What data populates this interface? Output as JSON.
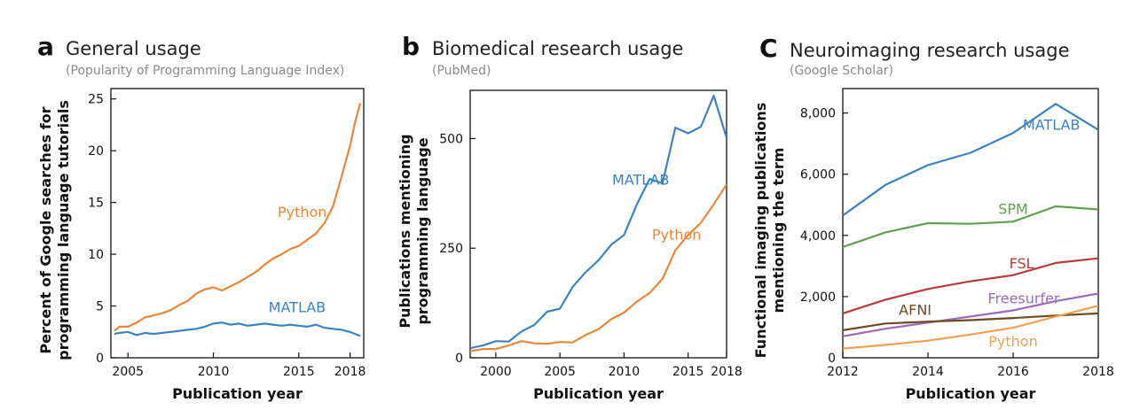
{
  "chart_data": [
    {
      "type": "line",
      "panel_label": "a",
      "title": "General usage",
      "subtitle": "(Popularity of Programming Language Index)",
      "xlabel": "Publication year",
      "ylabel": [
        "Percent of Google searches for",
        "programming language tutorials"
      ],
      "xlim": [
        2004,
        2018.8
      ],
      "ylim": [
        0,
        26
      ],
      "xticks": [
        2005,
        2010,
        2015,
        2018
      ],
      "yticks": [
        0,
        5,
        10,
        15,
        20,
        25
      ],
      "grid": false,
      "series": [
        {
          "name": "Python",
          "color": "#e8873a",
          "x": [
            2004.2,
            2004.5,
            2005,
            2005.5,
            2006,
            2006.5,
            2007,
            2007.5,
            2008,
            2008.5,
            2009,
            2009.5,
            2010,
            2010.5,
            2011,
            2011.5,
            2012,
            2012.5,
            2013,
            2013.5,
            2014,
            2014.5,
            2015,
            2015.5,
            2016,
            2016.5,
            2017,
            2017.5,
            2018,
            2018.3,
            2018.6
          ],
          "y": [
            2.6,
            3.0,
            3.0,
            3.4,
            3.9,
            4.1,
            4.3,
            4.6,
            5.1,
            5.5,
            6.2,
            6.6,
            6.8,
            6.5,
            6.9,
            7.3,
            7.8,
            8.3,
            9.0,
            9.6,
            10.0,
            10.5,
            10.8,
            11.4,
            12.0,
            13.0,
            14.6,
            17.5,
            20.5,
            22.8,
            24.6
          ]
        },
        {
          "name": "MATLAB",
          "color": "#3a83c0",
          "x": [
            2004.2,
            2004.5,
            2005,
            2005.5,
            2006,
            2006.5,
            2007,
            2007.5,
            2008,
            2008.5,
            2009,
            2009.5,
            2010,
            2010.5,
            2011,
            2011.5,
            2012,
            2012.5,
            2013,
            2013.5,
            2014,
            2014.5,
            2015,
            2015.5,
            2016,
            2016.5,
            2017,
            2017.5,
            2018,
            2018.3,
            2018.6
          ],
          "y": [
            2.3,
            2.4,
            2.5,
            2.2,
            2.4,
            2.3,
            2.4,
            2.5,
            2.6,
            2.7,
            2.8,
            3.0,
            3.3,
            3.4,
            3.2,
            3.3,
            3.1,
            3.2,
            3.3,
            3.2,
            3.1,
            3.2,
            3.1,
            3.0,
            3.2,
            2.9,
            2.8,
            2.7,
            2.5,
            2.3,
            2.1
          ]
        }
      ],
      "series_label_pos": [
        [
          2015.2,
          13.6
        ],
        [
          2014.9,
          4.4
        ]
      ]
    },
    {
      "type": "line",
      "panel_label": "b",
      "title": "Biomedical research usage",
      "subtitle": "(PubMed)",
      "xlabel": "Publication year",
      "ylabel": [
        "Publications mentioning",
        "programming language"
      ],
      "xlim": [
        1998,
        2018
      ],
      "ylim": [
        0,
        610
      ],
      "xticks": [
        2000,
        2005,
        2010,
        2015,
        2018
      ],
      "yticks": [
        0,
        250,
        500
      ],
      "grid": false,
      "series": [
        {
          "name": "MATLAB",
          "color": "#3a83c0",
          "x": [
            1998,
            1999,
            2000,
            2001,
            2002,
            2003,
            2004,
            2005,
            2006,
            2007,
            2008,
            2009,
            2010,
            2011,
            2012,
            2013,
            2014,
            2015,
            2016,
            2017,
            2018
          ],
          "y": [
            22,
            28,
            38,
            37,
            60,
            75,
            105,
            112,
            162,
            195,
            222,
            258,
            280,
            350,
            408,
            398,
            525,
            512,
            527,
            598,
            502
          ]
        },
        {
          "name": "Python",
          "color": "#e8873a",
          "x": [
            1998,
            1999,
            2000,
            2001,
            2002,
            2003,
            2004,
            2005,
            2006,
            2007,
            2008,
            2009,
            2010,
            2011,
            2012,
            2013,
            2014,
            2015,
            2016,
            2017,
            2018
          ],
          "y": [
            15,
            20,
            20,
            28,
            38,
            33,
            32,
            36,
            35,
            52,
            65,
            88,
            103,
            128,
            148,
            180,
            245,
            280,
            308,
            350,
            395
          ]
        }
      ],
      "series_label_pos": [
        [
          2011.3,
          395
        ],
        [
          2014.1,
          270
        ]
      ]
    },
    {
      "type": "line",
      "panel_label": "C",
      "title": "Neuroimaging research usage",
      "subtitle": "(Google Scholar)",
      "xlabel": "Publication year",
      "ylabel": [
        "Functional imaging publications",
        "mentioning the term"
      ],
      "xlim": [
        2012,
        2018
      ],
      "ylim": [
        0,
        8800
      ],
      "xticks": [
        2012,
        2014,
        2016,
        2018
      ],
      "xtick_labels": [
        "2012",
        "2014",
        "2016",
        "2018"
      ],
      "yticks": [
        0,
        2000,
        4000,
        6000,
        8000
      ],
      "ytick_labels": [
        "0",
        "2,000",
        "4,000",
        "6,000",
        "8,000"
      ],
      "grid": false,
      "series": [
        {
          "name": "MATLAB",
          "color": "#3a83c0",
          "x": [
            2012,
            2013,
            2014,
            2015,
            2016,
            2017,
            2018
          ],
          "y": [
            4650,
            5650,
            6300,
            6700,
            7350,
            8300,
            7450
          ]
        },
        {
          "name": "SPM",
          "color": "#5fa050",
          "x": [
            2012,
            2013,
            2014,
            2015,
            2016,
            2017,
            2018
          ],
          "y": [
            3620,
            4100,
            4400,
            4380,
            4450,
            4950,
            4850
          ]
        },
        {
          "name": "FSL",
          "color": "#b83a3a",
          "x": [
            2012,
            2013,
            2014,
            2015,
            2016,
            2017,
            2018
          ],
          "y": [
            1450,
            1900,
            2250,
            2500,
            2700,
            3100,
            3250
          ]
        },
        {
          "name": "Freesurfer",
          "color": "#9a6bb8",
          "x": [
            2012,
            2013,
            2014,
            2015,
            2016,
            2017,
            2018
          ],
          "y": [
            700,
            950,
            1150,
            1350,
            1550,
            1850,
            2100
          ]
        },
        {
          "name": "AFNI",
          "color": "#6e4a1e",
          "x": [
            2012,
            2013,
            2014,
            2015,
            2016,
            2017,
            2018
          ],
          "y": [
            900,
            1120,
            1180,
            1230,
            1300,
            1380,
            1450
          ]
        },
        {
          "name": "Python",
          "color": "#f0a050",
          "x": [
            2012,
            2013,
            2014,
            2015,
            2016,
            2017,
            2018
          ],
          "y": [
            300,
            420,
            560,
            760,
            980,
            1350,
            1700
          ]
        }
      ],
      "series_label_pos": [
        [
          2016.9,
          7450
        ],
        [
          2016.0,
          4700
        ],
        [
          2016.2,
          2930
        ],
        [
          2016.25,
          1780
        ],
        [
          2013.7,
          1400
        ],
        [
          2016.0,
          370
        ]
      ]
    }
  ]
}
